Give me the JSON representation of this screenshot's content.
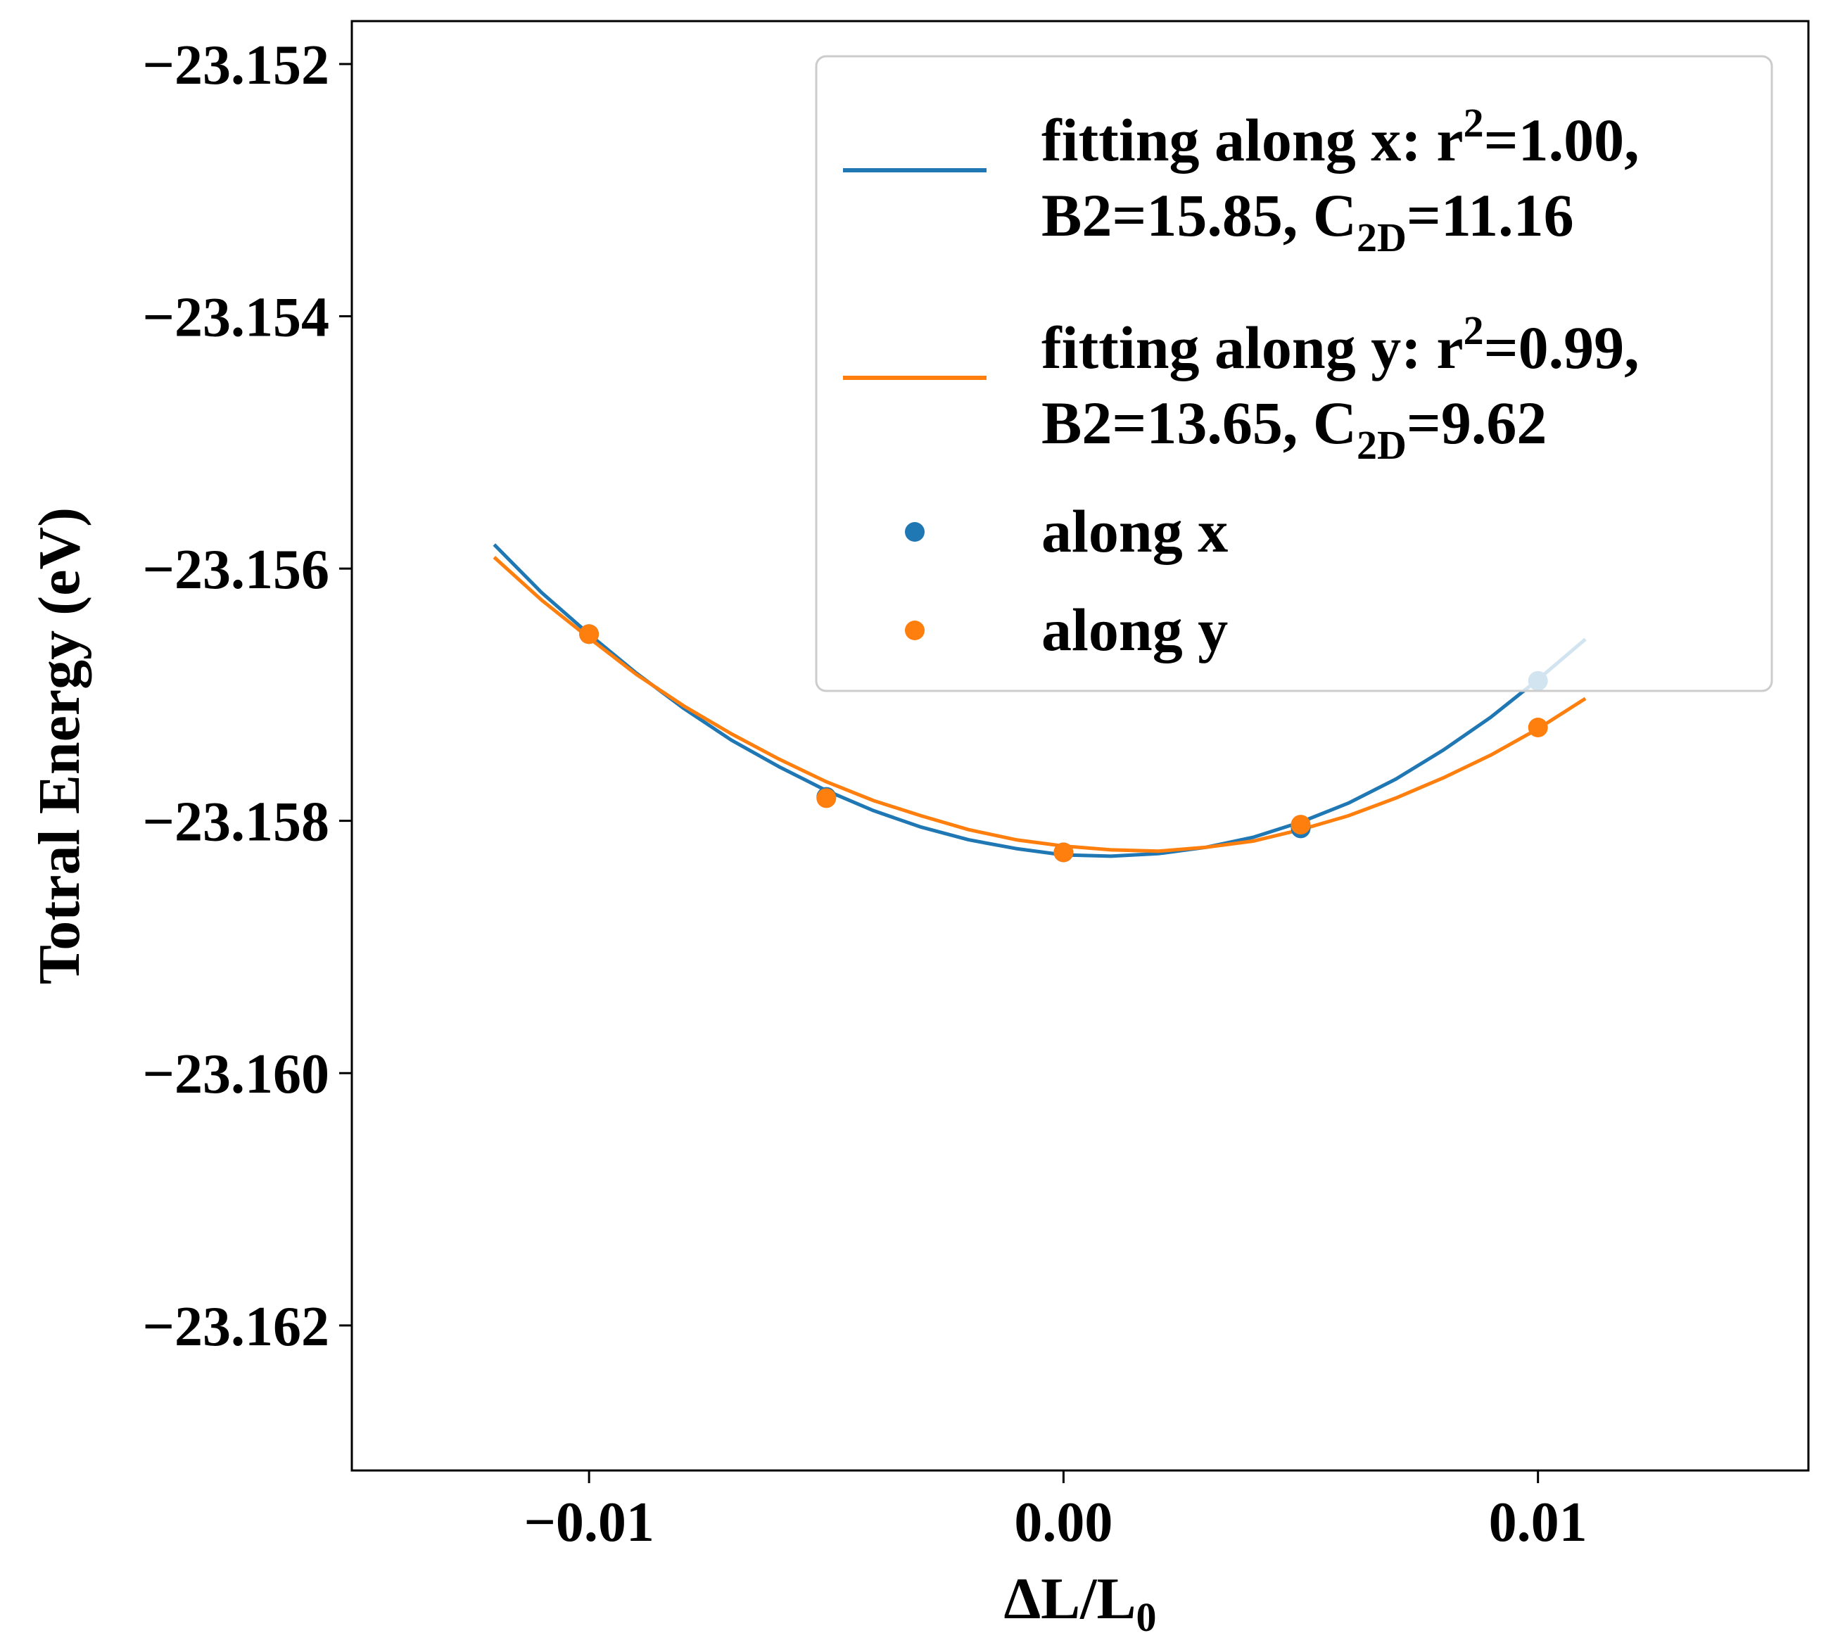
{
  "chart_data": {
    "type": "scatter",
    "title": "",
    "xlabel": "ΔL/L",
    "xlabel_subscript": "0",
    "ylabel": "Totral Energy (eV)",
    "xlim": [
      -0.015,
      0.0157
    ],
    "ylim": [
      -23.16315,
      -23.15166
    ],
    "xticks": [
      -0.01,
      0.0,
      0.01
    ],
    "xtick_labels": [
      "−0.01",
      "0.00",
      "0.01"
    ],
    "yticks": [
      -23.152,
      -23.154,
      -23.156,
      -23.158,
      -23.16,
      -23.162
    ],
    "ytick_labels": [
      "−23.152",
      "−23.154",
      "−23.156",
      "−23.158",
      "−23.160",
      "−23.162"
    ],
    "grid": false,
    "legend_position": "upper-right",
    "colors": {
      "along_x": "#1f77b4",
      "along_y": "#ff7f0e"
    },
    "series": [
      {
        "name": "fitting along x",
        "kind": "line",
        "color": "#1f77b4",
        "x": [
          -0.012,
          -0.011,
          -0.01,
          -0.009,
          -0.008,
          -0.007,
          -0.006,
          -0.005,
          -0.004,
          -0.003,
          -0.002,
          -0.001,
          0.0,
          0.001,
          0.002,
          0.003,
          0.004,
          0.005,
          0.006,
          0.007,
          0.008,
          0.009,
          0.01,
          0.011
        ],
        "y": [
          -23.15581,
          -23.15619,
          -23.15652,
          -23.15683,
          -23.15711,
          -23.15736,
          -23.15757,
          -23.15776,
          -23.15792,
          -23.15805,
          -23.15815,
          -23.15822,
          -23.15827,
          -23.15828,
          -23.15826,
          -23.15821,
          -23.15813,
          -23.15801,
          -23.15786,
          -23.15767,
          -23.15744,
          -23.15718,
          -23.15688,
          -23.15656
        ]
      },
      {
        "name": "fitting along y",
        "kind": "line",
        "color": "#ff7f0e",
        "x": [
          -0.012,
          -0.011,
          -0.01,
          -0.009,
          -0.008,
          -0.007,
          -0.006,
          -0.005,
          -0.004,
          -0.003,
          -0.002,
          -0.001,
          0.0,
          0.001,
          0.002,
          0.003,
          0.004,
          0.005,
          0.006,
          0.007,
          0.008,
          0.009,
          0.01,
          0.011
        ],
        "y": [
          -23.15591,
          -23.15625,
          -23.15655,
          -23.15684,
          -23.15709,
          -23.15731,
          -23.15751,
          -23.15769,
          -23.15784,
          -23.15796,
          -23.15807,
          -23.15815,
          -23.1582,
          -23.15823,
          -23.15824,
          -23.15821,
          -23.15816,
          -23.15807,
          -23.15796,
          -23.15782,
          -23.15766,
          -23.15748,
          -23.15727,
          -23.15703
        ]
      },
      {
        "name": "along x",
        "kind": "scatter",
        "color": "#1f77b4",
        "x": [
          -0.01,
          -0.005,
          0.0,
          0.005,
          0.01
        ],
        "y": [
          -23.15652,
          -23.15781,
          -23.15825,
          -23.15806,
          -23.15689
        ]
      },
      {
        "name": "along y",
        "kind": "scatter",
        "color": "#ff7f0e",
        "x": [
          -0.01,
          -0.005,
          0.0,
          0.005,
          0.01
        ],
        "y": [
          -23.15652,
          -23.15782,
          -23.15825,
          -23.15803,
          -23.15726
        ]
      }
    ],
    "legend": [
      {
        "symbol": "line",
        "color": "#1f77b4",
        "line1_parts": [
          "fitting along x: r",
          "2",
          "=1.00,"
        ],
        "line2_parts": [
          "B2=15.85, C",
          "2D",
          "=11.16"
        ]
      },
      {
        "symbol": "line",
        "color": "#ff7f0e",
        "line1_parts": [
          "fitting along y: r",
          "2",
          "=0.99,"
        ],
        "line2_parts": [
          "B2=13.65, C",
          "2D",
          "=9.62"
        ]
      },
      {
        "symbol": "dot",
        "color": "#1f77b4",
        "label": "along x"
      },
      {
        "symbol": "dot",
        "color": "#ff7f0e",
        "label": "along y"
      }
    ]
  }
}
